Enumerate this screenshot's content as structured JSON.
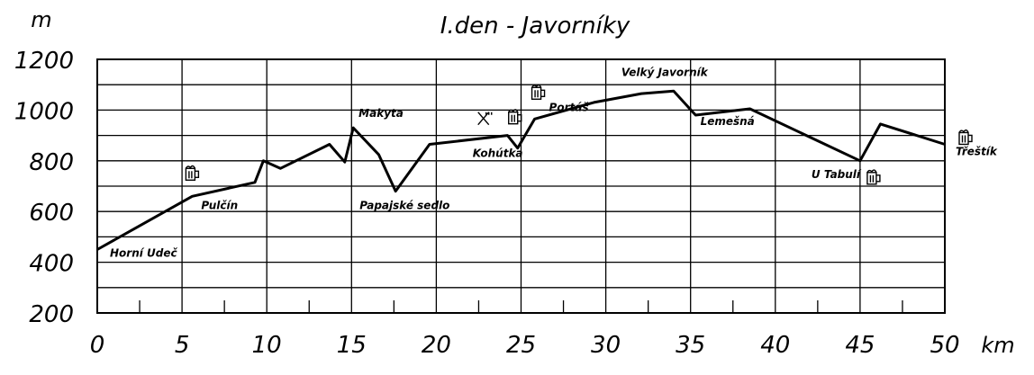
{
  "chart_data": {
    "type": "line",
    "title": "I.den - Javorníky",
    "xlabel": "km",
    "ylabel": "m",
    "xlim": [
      0,
      50
    ],
    "ylim": [
      200,
      1200
    ],
    "x_ticks": [
      "0",
      "5",
      "10",
      "15",
      "20",
      "25",
      "30",
      "35",
      "40",
      "45",
      "50"
    ],
    "y_ticks": [
      "200",
      "400",
      "600",
      "800",
      "1000",
      "1200"
    ],
    "grid": true,
    "x": [
      0,
      5.6,
      9.3,
      9.8,
      10.8,
      13.7,
      14.6,
      15.1,
      16.6,
      17.6,
      19.6,
      24.2,
      24.8,
      25.8,
      29.3,
      32.1,
      34.0,
      35.3,
      38.5,
      45.0,
      46.2,
      50.0
    ],
    "y": [
      450,
      660,
      715,
      800,
      770,
      865,
      795,
      930,
      825,
      680,
      865,
      900,
      850,
      965,
      1030,
      1065,
      1075,
      980,
      1005,
      800,
      945,
      865
    ],
    "places": [
      {
        "name": "Horní Udeč",
        "km": 0,
        "alt": 450,
        "beer": false,
        "restaurant": false
      },
      {
        "name": "Pulčín",
        "km": 5.6,
        "alt": 660,
        "beer": true,
        "restaurant": false
      },
      {
        "name": "Makyta",
        "km": 15.1,
        "alt": 930,
        "beer": false,
        "restaurant": false
      },
      {
        "name": "Papajské sedlo",
        "km": 17.6,
        "alt": 680,
        "beer": false,
        "restaurant": false
      },
      {
        "name": "Kohútka",
        "km": 24.8,
        "alt": 850,
        "beer": true,
        "restaurant": true
      },
      {
        "name": "Portáš",
        "km": 25.8,
        "alt": 965,
        "beer": true,
        "restaurant": false
      },
      {
        "name": "Velký Javorník",
        "km": 34.0,
        "alt": 1075,
        "beer": false,
        "restaurant": false
      },
      {
        "name": "Lemešná",
        "km": 38.5,
        "alt": 1005,
        "beer": false,
        "restaurant": false
      },
      {
        "name": "U Tabulí",
        "km": 45.0,
        "alt": 800,
        "beer": true,
        "restaurant": false
      },
      {
        "name": "Třeštík",
        "km": 50.0,
        "alt": 865,
        "beer": true,
        "restaurant": false
      }
    ]
  }
}
